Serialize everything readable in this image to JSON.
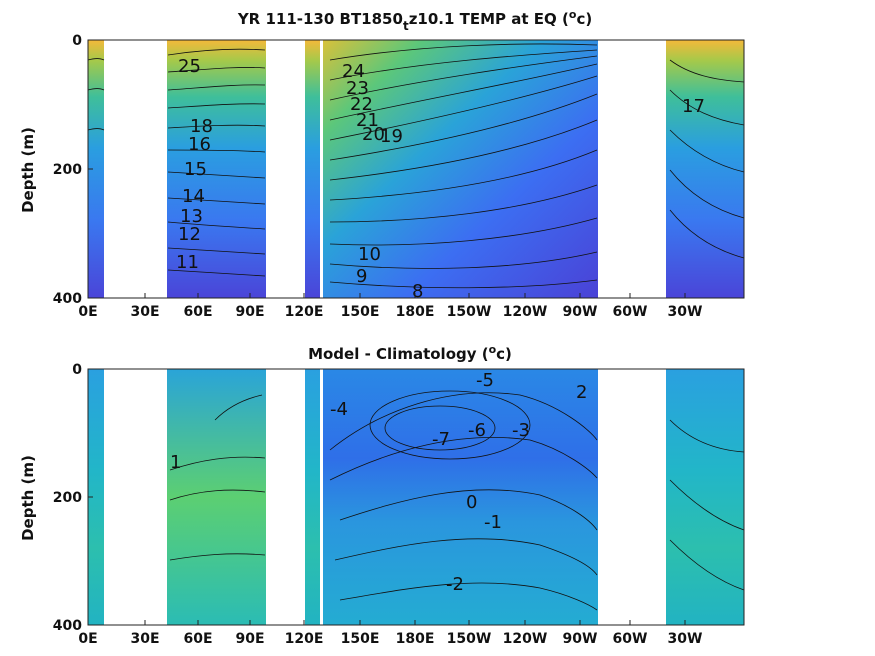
{
  "chart_data": [
    {
      "type": "heatmap",
      "subtype": "filled-contour",
      "title": "YR 111-130 BT1850",
      "title_subscript": "t",
      "title_suffix": "z10.1 TEMP at EQ (",
      "title_unit_sup": "o",
      "title_unit_tail": "c)",
      "ylabel": "Depth (m)",
      "ylim": [
        400,
        0
      ],
      "y_ticks": [
        "0",
        "200",
        "400"
      ],
      "x_ticks": [
        "0E",
        "30E",
        "60E",
        "90E",
        "120E",
        "150E",
        "180E",
        "150W",
        "120W",
        "90W",
        "60W",
        "30W"
      ],
      "colormap": [
        "#3e26a8",
        "#4760f6",
        "#2d96e2",
        "#1bc3b8",
        "#77d25c",
        "#d6c131",
        "#f9c531"
      ],
      "land_gaps_lon": [
        [
          10,
          45
        ],
        [
          98,
          120
        ],
        [
          125,
          128
        ],
        [
          275,
          295
        ]
      ],
      "contour_labels": [
        "25",
        "24",
        "23",
        "22",
        "21",
        "20",
        "19",
        "18",
        "17",
        "16",
        "15",
        "14",
        "13",
        "12",
        "11",
        "10",
        "9",
        "8"
      ]
    },
    {
      "type": "heatmap",
      "subtype": "filled-contour",
      "title": "Model - Climatology (",
      "title_unit_sup": "o",
      "title_unit_tail": "c)",
      "ylabel": "Depth (m)",
      "ylim": [
        400,
        0
      ],
      "y_ticks": [
        "0",
        "200",
        "400"
      ],
      "x_ticks": [
        "0E",
        "30E",
        "60E",
        "90E",
        "120E",
        "150E",
        "180E",
        "150W",
        "120W",
        "90W",
        "60W",
        "30W"
      ],
      "colormap": [
        "#3e26a8",
        "#4760f6",
        "#2d96e2",
        "#1bc3b8",
        "#77d25c",
        "#d6c131",
        "#f9c531"
      ],
      "contour_labels": [
        "-7",
        "-6",
        "-5",
        "-4",
        "-3",
        "-2",
        "-1",
        "0",
        "1",
        "2"
      ]
    }
  ]
}
